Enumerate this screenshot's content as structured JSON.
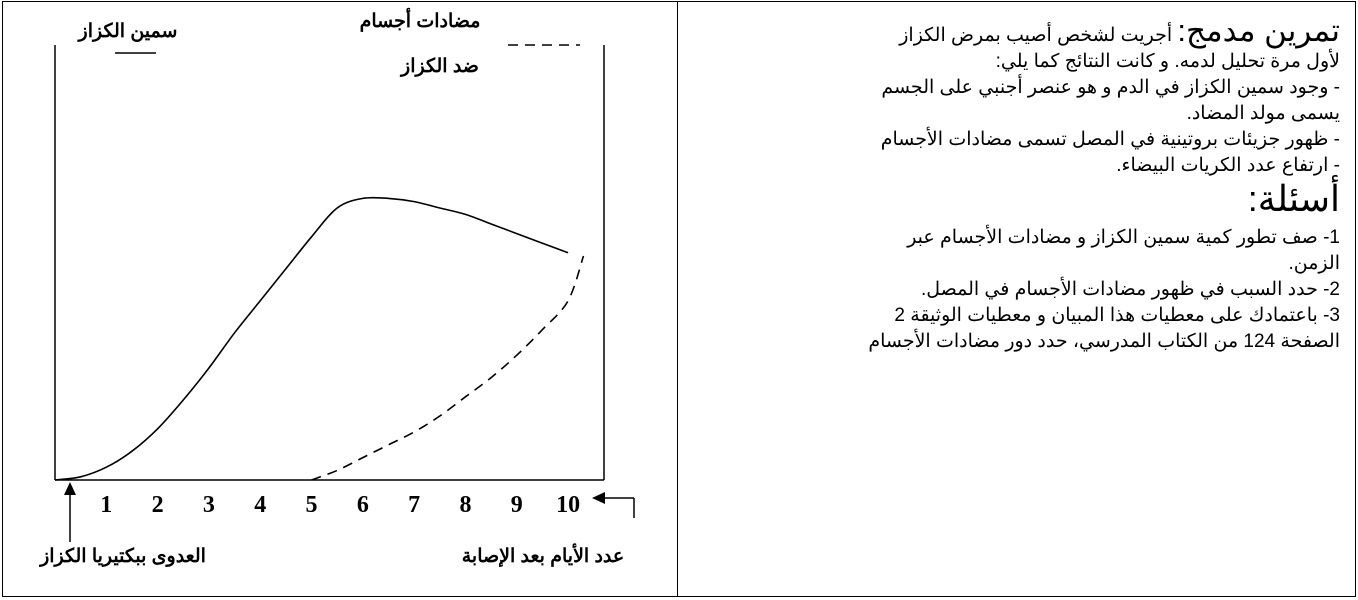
{
  "exercise": {
    "title": "تمرين مدمج:",
    "intro_1": "أجريت لشخص أصيب بمرض الكزاز",
    "intro_2": "لأول مرة تحليل لدمه. و كانت النتائج كما يلي:",
    "result_1a": "- وجود سمين الكزاز في الدم و هو عنصر أجنبي على الجسم",
    "result_1b": "يسمى مولد المضاد.",
    "result_2": "- ظهور جزيئات بروتينية في المصل تسمى مضادات الأجسام",
    "result_3": "- ارتفاع عدد الكريات البيضاء.",
    "questions_title": "أسئلة:",
    "q1_num": "1-",
    "q1_a": " صف تطور كمية سمين الكزاز و مضادات الأجسام عبر",
    "q1_b": "الزمن.",
    "q2": "2- حدد السبب في ظهور مضادات الأجسام في المصل.",
    "q3_a": "3- باعتمادك على معطيات هذا المبيان و معطيات الوثيقة 2",
    "q3_b": "الصفحة 124 من الكتاب المدرسي، حدد دور مضادات الأجسام"
  },
  "chart_data": {
    "type": "line",
    "xlabel": "عدد الأيام بعد الإصابة",
    "infection_label": "العدوى ببكتيريا الكزاز",
    "x_ticks": [
      "1",
      "2",
      "3",
      "4",
      "5",
      "6",
      "7",
      "8",
      "9",
      "10"
    ],
    "xlim": [
      0,
      10.7
    ],
    "ylim": [
      0,
      100
    ],
    "legend": "top",
    "series": [
      {
        "name": "سمين الكزاز",
        "line_style": "solid",
        "x": [
          0,
          0.5,
          1,
          1.5,
          2,
          2.5,
          3,
          3.5,
          4,
          4.5,
          5,
          5.5,
          6,
          6.5,
          7,
          7.5,
          8,
          8.5,
          9,
          9.5,
          10
        ],
        "y": [
          0,
          1,
          4,
          9,
          16,
          25,
          35,
          46,
          56,
          66,
          76,
          85,
          88,
          88,
          87,
          85,
          83,
          80,
          77,
          74,
          71
        ]
      },
      {
        "name_line1": "مضادات أجسام",
        "name_line2": "ضد الكزاز",
        "line_style": "dashed",
        "x": [
          5,
          5.5,
          6,
          6.5,
          7,
          7.5,
          8,
          8.5,
          9,
          9.5,
          10,
          10.3
        ],
        "y": [
          0,
          3,
          7,
          11,
          15,
          20,
          26,
          32,
          39,
          47,
          56,
          70
        ]
      }
    ]
  }
}
